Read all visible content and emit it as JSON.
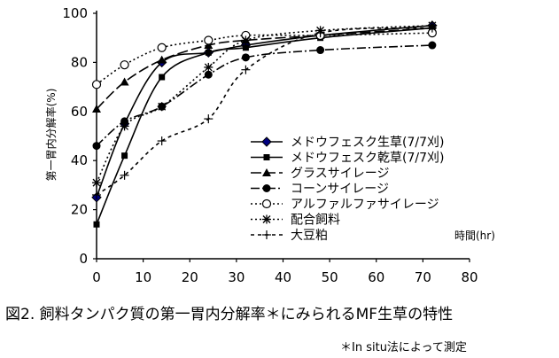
{
  "chart_data": {
    "type": "line",
    "ylabel": "第一胃内分解率(%)",
    "xlabel": "時間(hr)",
    "xlim": [
      0,
      80
    ],
    "ylim": [
      0,
      100
    ],
    "xticks": [
      0,
      10,
      20,
      30,
      40,
      50,
      60,
      70,
      80
    ],
    "yticks": [
      0,
      20,
      40,
      60,
      80,
      100
    ],
    "grid": false,
    "legend_position": "center-right",
    "series": [
      {
        "name": "メドウフェスク生草(7/7刈)",
        "marker": "diamond-filled",
        "dash": "solid",
        "x": [
          0,
          6,
          14,
          24,
          32,
          48,
          72
        ],
        "y": [
          25,
          55,
          80,
          84,
          87,
          91,
          95
        ]
      },
      {
        "name": "メドウフェスク乾草(7/7刈)",
        "marker": "square-filled",
        "dash": "solid",
        "x": [
          0,
          6,
          14,
          24,
          32,
          48,
          72
        ],
        "y": [
          14,
          42,
          74,
          84,
          86,
          90,
          94
        ]
      },
      {
        "name": "グラスサイレージ",
        "marker": "triangle-filled",
        "dash": "longdash",
        "x": [
          0,
          6,
          14,
          24,
          32,
          48,
          72
        ],
        "y": [
          61,
          72,
          81,
          87,
          89,
          91,
          94
        ]
      },
      {
        "name": "コーンサイレージ",
        "marker": "circle-filled",
        "dash": "dashdot",
        "x": [
          0,
          6,
          14,
          24,
          32,
          48,
          72
        ],
        "y": [
          46,
          56,
          62,
          75,
          82,
          85,
          87
        ]
      },
      {
        "name": "アルファルファサイレージ",
        "marker": "circle-open",
        "dash": "dotted",
        "x": [
          0,
          6,
          14,
          24,
          32,
          48,
          72
        ],
        "y": [
          71,
          79,
          86,
          89,
          91,
          91,
          92
        ]
      },
      {
        "name": "配合飼料",
        "marker": "asterisk",
        "dash": "dotted",
        "x": [
          0,
          6,
          14,
          24,
          32,
          48,
          72
        ],
        "y": [
          31,
          54,
          62,
          78,
          89,
          93,
          95
        ]
      },
      {
        "name": "大豆粕",
        "marker": "plus",
        "dash": "shortdash",
        "x": [
          0,
          6,
          14,
          24,
          32,
          48,
          72
        ],
        "y": [
          26,
          34,
          48,
          57,
          77,
          92,
          94
        ]
      }
    ]
  },
  "caption": "図2. 飼料タンパク質の第一胃内分解率＊にみられるMF生草の特性",
  "footnote": "＊In situ法によって測定"
}
